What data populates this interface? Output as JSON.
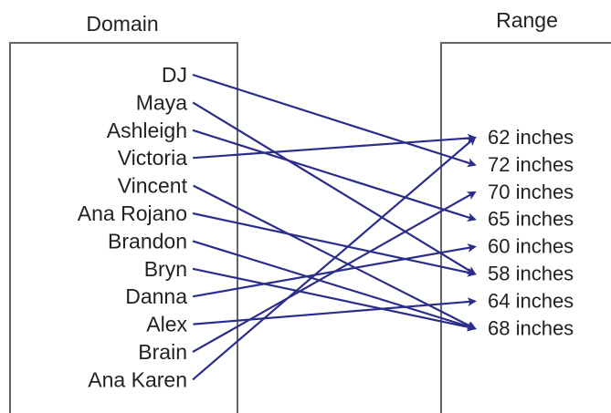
{
  "domain_title": "Domain",
  "range_title": "Range",
  "domain": [
    "DJ",
    "Maya",
    "Ashleigh",
    "Victoria",
    "Vincent",
    "Ana Rojano",
    "Brandon",
    "Bryn",
    "Danna",
    "Alex",
    "Brain",
    "Ana Karen"
  ],
  "range": [
    "62 inches",
    "72 inches",
    "70 inches",
    "65 inches",
    "60 inches",
    "58 inches",
    "64 inches",
    "68 inches"
  ],
  "mappings": [
    {
      "from": "DJ",
      "to": "72 inches"
    },
    {
      "from": "Maya",
      "to": "58 inches"
    },
    {
      "from": "Ashleigh",
      "to": "65 inches"
    },
    {
      "from": "Victoria",
      "to": "62 inches"
    },
    {
      "from": "Vincent",
      "to": "68 inches"
    },
    {
      "from": "Ana Rojano",
      "to": "58 inches"
    },
    {
      "from": "Brandon",
      "to": "68 inches"
    },
    {
      "from": "Bryn",
      "to": "68 inches"
    },
    {
      "from": "Danna",
      "to": "60 inches"
    },
    {
      "from": "Alex",
      "to": "64 inches"
    },
    {
      "from": "Brain",
      "to": "70 inches"
    },
    {
      "from": "Ana Karen",
      "to": "62 inches"
    }
  ],
  "colors": {
    "arrow": "#2b2d8a",
    "box": "#666666",
    "text": "#222222"
  }
}
